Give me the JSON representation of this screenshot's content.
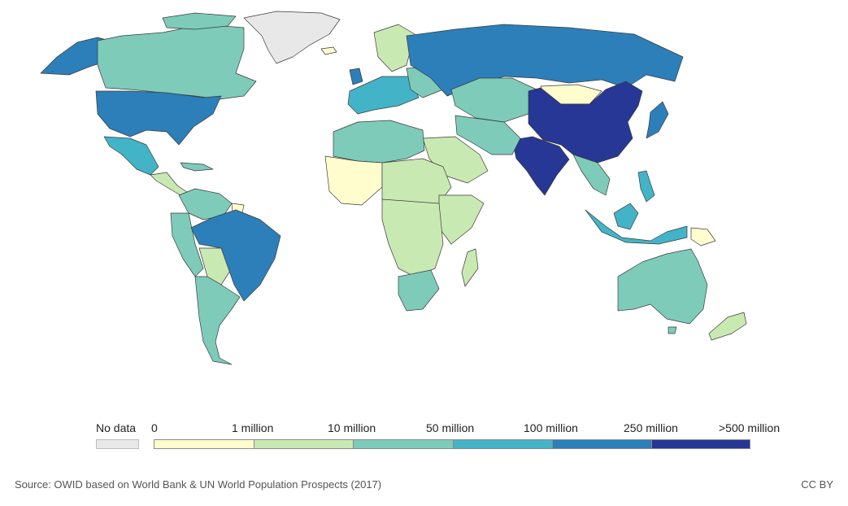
{
  "legend": {
    "no_data_label": "No data",
    "no_data_color": "#e8e8e8",
    "bins": [
      {
        "from_label": "0",
        "to_label": "1 million",
        "color": "#fffcce"
      },
      {
        "from_label": "1 million",
        "to_label": "10 million",
        "color": "#c9e9b2"
      },
      {
        "from_label": "10 million",
        "to_label": "50 million",
        "color": "#7ecbba"
      },
      {
        "from_label": "50 million",
        "to_label": "100 million",
        "color": "#43b4c7"
      },
      {
        "from_label": "100 million",
        "to_label": "250 million",
        "color": "#2c7fb9"
      },
      {
        "from_label": "250 million",
        "to_label": ">500 million",
        "color": "#263795"
      }
    ],
    "tick_labels": [
      "0",
      "1 million",
      "10 million",
      "50 million",
      "100 million",
      "250 million",
      ">500 million"
    ]
  },
  "footer": {
    "source": "Source: OWID based on World Bank & UN World Population Prospects (2017)",
    "license": "CC BY"
  }
}
